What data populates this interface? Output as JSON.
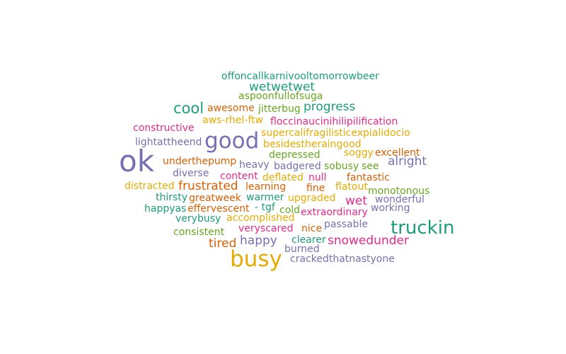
{
  "colors": {
    "teal": "#1b9e77",
    "orange": "#d95f02",
    "purple": "#7570b3",
    "pink": "#e7298a",
    "green": "#66a61e",
    "gold": "#e6ab02"
  },
  "words": [
    {
      "text": "offoncallkarnivooltomorrowbeer",
      "color": "#1b9e77"
    },
    {
      "text": "wetwetwet",
      "color": "#1b9e77"
    },
    {
      "text": "aspoonfullofsuga",
      "color": "#66a61e"
    },
    {
      "text": "cool",
      "color": "#1b9e77"
    },
    {
      "text": "awesome",
      "color": "#d95f02"
    },
    {
      "text": "jitterbug",
      "color": "#66a61e"
    },
    {
      "text": "progress",
      "color": "#1b9e77"
    },
    {
      "text": "aws-rhel-ftw",
      "color": "#e6ab02"
    },
    {
      "text": "floccinaucinihilipilification",
      "color": "#e7298a"
    },
    {
      "text": "constructive",
      "color": "#e7298a"
    },
    {
      "text": "supercalifragilisticexpialidocio",
      "color": "#e6ab02"
    },
    {
      "text": "good",
      "color": "#7570b3"
    },
    {
      "text": "lightattheend",
      "color": "#7570b3"
    },
    {
      "text": "besidestheraingood",
      "color": "#e6ab02"
    },
    {
      "text": "ok",
      "color": "#7570b3"
    },
    {
      "text": "depressed",
      "color": "#66a61e"
    },
    {
      "text": "soggy",
      "color": "#e6ab02"
    },
    {
      "text": "excellent",
      "color": "#d95f02"
    },
    {
      "text": "underthepump",
      "color": "#d95f02"
    },
    {
      "text": "heavy",
      "color": "#7570b3"
    },
    {
      "text": "badgered",
      "color": "#7570b3"
    },
    {
      "text": "sobusy",
      "color": "#66a61e"
    },
    {
      "text": "see",
      "color": "#66a61e"
    },
    {
      "text": "alright",
      "color": "#7570b3"
    },
    {
      "text": "diverse",
      "color": "#7570b3"
    },
    {
      "text": "content",
      "color": "#e7298a"
    },
    {
      "text": "deflated",
      "color": "#e6ab02"
    },
    {
      "text": "null",
      "color": "#e7298a"
    },
    {
      "text": "fantastic",
      "color": "#d95f02"
    },
    {
      "text": "distracted",
      "color": "#e6ab02"
    },
    {
      "text": "frustrated",
      "color": "#d95f02"
    },
    {
      "text": "learning",
      "color": "#d95f02"
    },
    {
      "text": "fine",
      "color": "#d95f02"
    },
    {
      "text": "flatout",
      "color": "#e6ab02"
    },
    {
      "text": "monotonous",
      "color": "#66a61e"
    },
    {
      "text": "thirsty",
      "color": "#1b9e77"
    },
    {
      "text": "greatweek",
      "color": "#d95f02"
    },
    {
      "text": "warmer",
      "color": "#1b9e77"
    },
    {
      "text": "upgraded",
      "color": "#e6ab02"
    },
    {
      "text": "wet",
      "color": "#e7298a"
    },
    {
      "text": "wonderful",
      "color": "#7570b3"
    },
    {
      "text": "happyas",
      "color": "#1b9e77"
    },
    {
      "text": "effervescent",
      "color": "#d95f02"
    },
    {
      "text": "- tgf",
      "color": "#1b9e77"
    },
    {
      "text": "cold",
      "color": "#66a61e"
    },
    {
      "text": "extraordinary",
      "color": "#e7298a"
    },
    {
      "text": "working",
      "color": "#7570b3"
    },
    {
      "text": "verybusy",
      "color": "#1b9e77"
    },
    {
      "text": "accomplished",
      "color": "#e6ab02"
    },
    {
      "text": "passable",
      "color": "#7570b3"
    },
    {
      "text": "truckin",
      "color": "#1b9e77"
    },
    {
      "text": "veryscared",
      "color": "#e7298a"
    },
    {
      "text": "nice",
      "color": "#d95f02"
    },
    {
      "text": "consistent",
      "color": "#66a61e"
    },
    {
      "text": "clearer",
      "color": "#1b9e77"
    },
    {
      "text": "happy",
      "color": "#7570b3"
    },
    {
      "text": "snowedunder",
      "color": "#e7298a"
    },
    {
      "text": "tired",
      "color": "#d95f02"
    },
    {
      "text": "burned",
      "color": "#7570b3"
    },
    {
      "text": "busy",
      "color": "#e6ab02"
    },
    {
      "text": "crackedthatnastyone",
      "color": "#7570b3"
    }
  ]
}
